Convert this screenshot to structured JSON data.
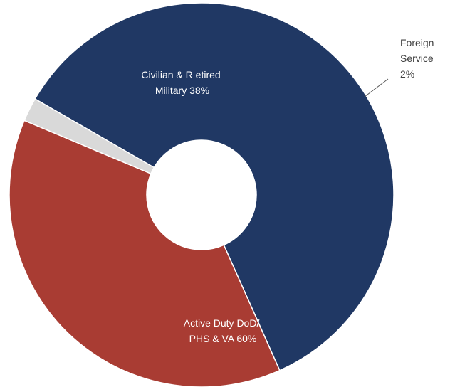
{
  "chart_data": {
    "type": "pie",
    "style": "donut",
    "categories": [
      "Active Duty DoD/ PHS & VA",
      "Civilian & R etired Military",
      "Foreign Service"
    ],
    "values": [
      60,
      38,
      2
    ],
    "colors": [
      "#203864",
      "#a93c33",
      "#d9d9d9"
    ],
    "labels": [
      {
        "lines": [
          "Active Duty DoD/",
          "PHS & VA 60%"
        ],
        "color": "#ffffff"
      },
      {
        "lines": [
          "Civilian & R etired",
          "Military 38%"
        ],
        "color": "#ffffff"
      },
      {
        "lines": [
          "Foreign",
          "Service",
          "2%"
        ],
        "color": "#404040"
      }
    ],
    "title": "",
    "legend": "none"
  }
}
